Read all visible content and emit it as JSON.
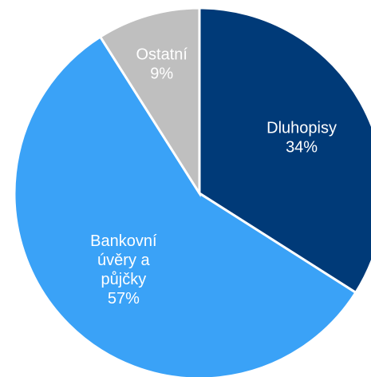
{
  "chart_data": {
    "type": "pie",
    "title": "",
    "slices": [
      {
        "name": "Dluhopisy",
        "value": 34,
        "value_label": "34%",
        "color": "#003A78",
        "label_color": "#ffffff",
        "label_lines": [
          "Dluhopisy",
          "34%"
        ]
      },
      {
        "name": "Bankovní úvěry a půjčky",
        "value": 57,
        "value_label": "57%",
        "color": "#3AA2F7",
        "label_color": "#ffffff",
        "label_lines": [
          "Bankovní",
          "úvěry a",
          "půjčky",
          "57%"
        ]
      },
      {
        "name": "Ostatní",
        "value": 9,
        "value_label": "9%",
        "color": "#BFBFBF",
        "label_color": "#ffffff",
        "label_lines": [
          "Ostatní",
          "9%"
        ]
      }
    ],
    "start_angle": "12 o'clock",
    "direction": "clockwise",
    "legend": "none"
  }
}
